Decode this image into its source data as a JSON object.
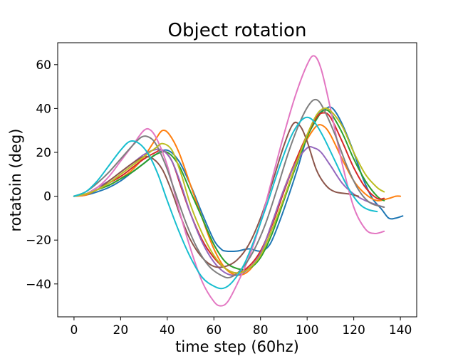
{
  "chart_data": {
    "type": "line",
    "title": "Object rotation",
    "xlabel": "time step (60hz)",
    "ylabel": "rotatoin (deg)",
    "xlim": [
      -7,
      147
    ],
    "ylim": [
      -55,
      70
    ],
    "xticks": [
      0,
      20,
      40,
      60,
      80,
      100,
      120,
      140
    ],
    "yticks": [
      -40,
      -20,
      0,
      20,
      40,
      60
    ],
    "xtick_labels": [
      "0",
      "20",
      "40",
      "60",
      "80",
      "100",
      "120",
      "140"
    ],
    "ytick_labels": [
      "−40",
      "−20",
      "0",
      "20",
      "40",
      "60"
    ],
    "grid": false,
    "legend": "none",
    "series": [
      {
        "color": "#1f77b4",
        "points": [
          [
            0,
            0
          ],
          [
            5,
            0.5
          ],
          [
            10,
            2
          ],
          [
            15,
            4
          ],
          [
            20,
            7
          ],
          [
            25,
            11
          ],
          [
            30,
            15
          ],
          [
            35,
            19
          ],
          [
            40,
            21
          ],
          [
            45,
            16
          ],
          [
            50,
            5
          ],
          [
            55,
            -8
          ],
          [
            60,
            -20
          ],
          [
            63,
            -24
          ],
          [
            65,
            -25
          ],
          [
            70,
            -25
          ],
          [
            75,
            -24
          ],
          [
            80,
            -25
          ],
          [
            84,
            -22
          ],
          [
            88,
            -12
          ],
          [
            92,
            0
          ],
          [
            96,
            13
          ],
          [
            100,
            27
          ],
          [
            104,
            36
          ],
          [
            108,
            40
          ],
          [
            111,
            40
          ],
          [
            115,
            33
          ],
          [
            120,
            20
          ],
          [
            124,
            8
          ],
          [
            128,
            -1
          ],
          [
            132,
            -6
          ],
          [
            135,
            -10
          ],
          [
            138,
            -10
          ],
          [
            141,
            -9
          ]
        ]
      },
      {
        "color": "#ff7f0e",
        "points": [
          [
            0,
            0
          ],
          [
            5,
            0.5
          ],
          [
            10,
            3
          ],
          [
            15,
            5
          ],
          [
            20,
            8
          ],
          [
            25,
            12
          ],
          [
            30,
            18
          ],
          [
            35,
            26
          ],
          [
            38,
            30
          ],
          [
            41,
            28
          ],
          [
            45,
            20
          ],
          [
            50,
            5
          ],
          [
            55,
            -10
          ],
          [
            60,
            -24
          ],
          [
            65,
            -33
          ],
          [
            70,
            -36
          ],
          [
            75,
            -34
          ],
          [
            80,
            -26
          ],
          [
            85,
            -12
          ],
          [
            90,
            3
          ],
          [
            95,
            16
          ],
          [
            100,
            26
          ],
          [
            104,
            32
          ],
          [
            107,
            32
          ],
          [
            110,
            28
          ],
          [
            115,
            17
          ],
          [
            120,
            7
          ],
          [
            125,
            1
          ],
          [
            130,
            -2
          ],
          [
            135,
            -1
          ],
          [
            138,
            0
          ],
          [
            140,
            0
          ]
        ]
      },
      {
        "color": "#2ca02c",
        "points": [
          [
            0,
            0
          ],
          [
            5,
            1
          ],
          [
            10,
            3
          ],
          [
            15,
            5
          ],
          [
            20,
            8
          ],
          [
            25,
            11
          ],
          [
            30,
            15
          ],
          [
            35,
            19
          ],
          [
            40,
            20
          ],
          [
            45,
            14
          ],
          [
            50,
            2
          ],
          [
            55,
            -10
          ],
          [
            60,
            -22
          ],
          [
            65,
            -30
          ],
          [
            70,
            -33
          ],
          [
            75,
            -33
          ],
          [
            80,
            -28
          ],
          [
            85,
            -17
          ],
          [
            90,
            -2
          ],
          [
            95,
            13
          ],
          [
            100,
            27
          ],
          [
            104,
            35
          ],
          [
            107,
            39
          ],
          [
            110,
            38
          ],
          [
            115,
            29
          ],
          [
            120,
            17
          ],
          [
            125,
            7
          ],
          [
            130,
            0
          ],
          [
            133,
            -2
          ]
        ]
      },
      {
        "color": "#d62728",
        "points": [
          [
            0,
            0
          ],
          [
            5,
            1
          ],
          [
            10,
            3
          ],
          [
            15,
            6
          ],
          [
            20,
            9
          ],
          [
            25,
            13
          ],
          [
            30,
            17
          ],
          [
            35,
            20
          ],
          [
            38,
            21
          ],
          [
            42,
            16
          ],
          [
            46,
            4
          ],
          [
            50,
            -8
          ],
          [
            55,
            -20
          ],
          [
            60,
            -28
          ],
          [
            65,
            -33
          ],
          [
            70,
            -35
          ],
          [
            75,
            -32
          ],
          [
            80,
            -25
          ],
          [
            85,
            -13
          ],
          [
            90,
            2
          ],
          [
            95,
            16
          ],
          [
            100,
            28
          ],
          [
            104,
            36
          ],
          [
            107,
            38
          ],
          [
            110,
            36
          ],
          [
            115,
            25
          ],
          [
            120,
            13
          ],
          [
            125,
            4
          ],
          [
            130,
            -1
          ],
          [
            133,
            -1
          ]
        ]
      },
      {
        "color": "#9467bd",
        "points": [
          [
            0,
            0
          ],
          [
            5,
            1
          ],
          [
            10,
            4
          ],
          [
            15,
            7
          ],
          [
            20,
            11
          ],
          [
            25,
            15
          ],
          [
            30,
            19
          ],
          [
            34,
            21
          ],
          [
            38,
            21
          ],
          [
            42,
            16
          ],
          [
            46,
            5
          ],
          [
            50,
            -8
          ],
          [
            55,
            -21
          ],
          [
            60,
            -30
          ],
          [
            65,
            -35
          ],
          [
            70,
            -36
          ],
          [
            75,
            -33
          ],
          [
            80,
            -26
          ],
          [
            85,
            -12
          ],
          [
            90,
            3
          ],
          [
            95,
            15
          ],
          [
            100,
            22
          ],
          [
            103,
            22
          ],
          [
            106,
            20
          ],
          [
            110,
            14
          ],
          [
            115,
            6
          ],
          [
            120,
            1
          ],
          [
            125,
            -2
          ],
          [
            130,
            -4
          ],
          [
            133,
            -5
          ]
        ]
      },
      {
        "color": "#8c564b",
        "points": [
          [
            0,
            0
          ],
          [
            5,
            1
          ],
          [
            10,
            3
          ],
          [
            15,
            7
          ],
          [
            20,
            11
          ],
          [
            25,
            15
          ],
          [
            30,
            18
          ],
          [
            34,
            17
          ],
          [
            38,
            12
          ],
          [
            42,
            2
          ],
          [
            46,
            -10
          ],
          [
            50,
            -20
          ],
          [
            55,
            -28
          ],
          [
            60,
            -32
          ],
          [
            65,
            -32
          ],
          [
            70,
            -29
          ],
          [
            75,
            -22
          ],
          [
            80,
            -10
          ],
          [
            85,
            6
          ],
          [
            90,
            23
          ],
          [
            94,
            33
          ],
          [
            97,
            32
          ],
          [
            100,
            25
          ],
          [
            104,
            12
          ],
          [
            108,
            5
          ],
          [
            112,
            2
          ],
          [
            118,
            1
          ],
          [
            122,
            0
          ]
        ]
      },
      {
        "color": "#e377c2",
        "points": [
          [
            0,
            0
          ],
          [
            5,
            1
          ],
          [
            10,
            4
          ],
          [
            15,
            9
          ],
          [
            20,
            16
          ],
          [
            25,
            23
          ],
          [
            30,
            30
          ],
          [
            33,
            30
          ],
          [
            36,
            25
          ],
          [
            40,
            14
          ],
          [
            45,
            -6
          ],
          [
            50,
            -24
          ],
          [
            55,
            -39
          ],
          [
            60,
            -48
          ],
          [
            63,
            -50
          ],
          [
            66,
            -48
          ],
          [
            70,
            -40
          ],
          [
            75,
            -28
          ],
          [
            80,
            -12
          ],
          [
            85,
            8
          ],
          [
            90,
            28
          ],
          [
            95,
            46
          ],
          [
            100,
            60
          ],
          [
            103,
            64
          ],
          [
            106,
            58
          ],
          [
            110,
            40
          ],
          [
            115,
            15
          ],
          [
            120,
            -5
          ],
          [
            125,
            -15
          ],
          [
            129,
            -17
          ],
          [
            133,
            -16
          ]
        ]
      },
      {
        "color": "#7f7f7f",
        "points": [
          [
            0,
            0
          ],
          [
            5,
            2
          ],
          [
            10,
            6
          ],
          [
            15,
            11
          ],
          [
            20,
            17
          ],
          [
            25,
            23
          ],
          [
            29,
            27
          ],
          [
            32,
            27
          ],
          [
            35,
            24
          ],
          [
            39,
            15
          ],
          [
            43,
            3
          ],
          [
            48,
            -12
          ],
          [
            53,
            -24
          ],
          [
            58,
            -32
          ],
          [
            63,
            -36
          ],
          [
            67,
            -37
          ],
          [
            72,
            -33
          ],
          [
            77,
            -25
          ],
          [
            82,
            -13
          ],
          [
            87,
            3
          ],
          [
            92,
            20
          ],
          [
            97,
            34
          ],
          [
            101,
            42
          ],
          [
            104,
            44
          ],
          [
            107,
            40
          ],
          [
            112,
            28
          ],
          [
            117,
            14
          ],
          [
            122,
            3
          ],
          [
            127,
            -3
          ],
          [
            133,
            -5
          ]
        ]
      },
      {
        "color": "#bcbd22",
        "points": [
          [
            0,
            0
          ],
          [
            5,
            1
          ],
          [
            10,
            3
          ],
          [
            15,
            6
          ],
          [
            20,
            10
          ],
          [
            25,
            14
          ],
          [
            30,
            18
          ],
          [
            35,
            22
          ],
          [
            38,
            24
          ],
          [
            42,
            21
          ],
          [
            46,
            10
          ],
          [
            50,
            -4
          ],
          [
            55,
            -17
          ],
          [
            60,
            -27
          ],
          [
            65,
            -33
          ],
          [
            70,
            -35
          ],
          [
            75,
            -33
          ],
          [
            80,
            -27
          ],
          [
            85,
            -15
          ],
          [
            90,
            -1
          ],
          [
            95,
            14
          ],
          [
            100,
            28
          ],
          [
            104,
            37
          ],
          [
            107,
            40
          ],
          [
            110,
            39
          ],
          [
            115,
            32
          ],
          [
            120,
            20
          ],
          [
            125,
            10
          ],
          [
            130,
            4
          ],
          [
            133,
            2
          ]
        ]
      },
      {
        "color": "#17becf",
        "points": [
          [
            0,
            0
          ],
          [
            5,
            2
          ],
          [
            10,
            7
          ],
          [
            15,
            14
          ],
          [
            20,
            21
          ],
          [
            24,
            25
          ],
          [
            28,
            24
          ],
          [
            32,
            19
          ],
          [
            36,
            10
          ],
          [
            40,
            -2
          ],
          [
            45,
            -16
          ],
          [
            50,
            -28
          ],
          [
            55,
            -37
          ],
          [
            60,
            -41
          ],
          [
            64,
            -42
          ],
          [
            68,
            -39
          ],
          [
            73,
            -31
          ],
          [
            78,
            -18
          ],
          [
            83,
            -3
          ],
          [
            88,
            13
          ],
          [
            93,
            27
          ],
          [
            97,
            34
          ],
          [
            100,
            36
          ],
          [
            103,
            34
          ],
          [
            107,
            27
          ],
          [
            112,
            16
          ],
          [
            117,
            5
          ],
          [
            122,
            -3
          ],
          [
            126,
            -6
          ],
          [
            130,
            -7
          ]
        ]
      }
    ]
  }
}
